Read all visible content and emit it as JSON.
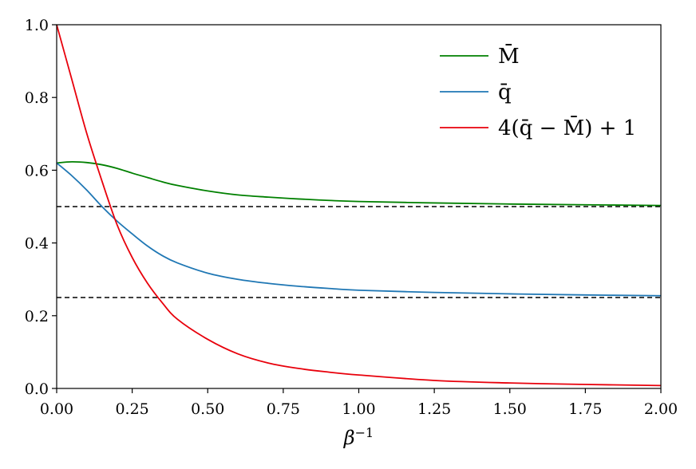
{
  "chart_data": {
    "type": "line",
    "xlabel": "β⁻¹",
    "ylabel": "",
    "title": "",
    "xlim": [
      0,
      2
    ],
    "ylim": [
      0,
      1
    ],
    "x_ticks": [
      "0.00",
      "0.25",
      "0.50",
      "0.75",
      "1.00",
      "1.25",
      "1.50",
      "1.75",
      "2.00"
    ],
    "y_ticks": [
      "0.0",
      "0.2",
      "0.4",
      "0.6",
      "0.8",
      "1.0"
    ],
    "grid": false,
    "legend_position": "top-right",
    "x": [
      0,
      0.05,
      0.1,
      0.15,
      0.2,
      0.25,
      0.3,
      0.35,
      0.4,
      0.5,
      0.6,
      0.7,
      0.8,
      0.9,
      1.0,
      1.25,
      1.5,
      1.75,
      2.0
    ],
    "series": [
      {
        "name": "M̄",
        "color": "#008000",
        "values": [
          0.62,
          0.623,
          0.621,
          0.615,
          0.605,
          0.592,
          0.58,
          0.568,
          0.558,
          0.543,
          0.532,
          0.526,
          0.521,
          0.517,
          0.514,
          0.51,
          0.507,
          0.505,
          0.503
        ]
      },
      {
        "name": "q̄",
        "color": "#1f77b4",
        "values": [
          0.62,
          0.585,
          0.545,
          0.5,
          0.46,
          0.425,
          0.392,
          0.365,
          0.345,
          0.317,
          0.3,
          0.289,
          0.281,
          0.275,
          0.27,
          0.264,
          0.26,
          0.257,
          0.255
        ]
      },
      {
        "name": "4(q̄ − M̄) + 1",
        "color": "#e8000b",
        "values": [
          1.0,
          0.85,
          0.7,
          0.57,
          0.45,
          0.36,
          0.29,
          0.235,
          0.19,
          0.135,
          0.095,
          0.07,
          0.055,
          0.045,
          0.037,
          0.022,
          0.015,
          0.011,
          0.008
        ]
      }
    ],
    "reference_lines": [
      {
        "y": 0.5,
        "style": "dashed",
        "color": "#000000"
      },
      {
        "y": 0.25,
        "style": "dashed",
        "color": "#000000"
      }
    ]
  }
}
